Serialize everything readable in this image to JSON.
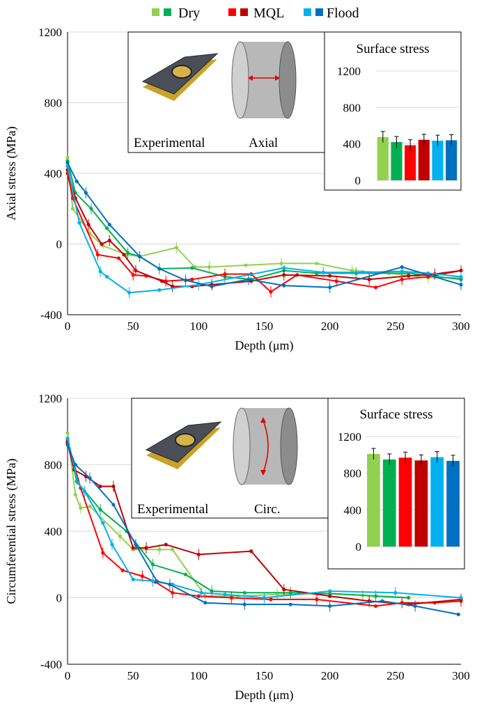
{
  "legend": [
    {
      "label": "Dry",
      "colors": [
        "#92d050",
        "#00b050"
      ]
    },
    {
      "label": "MQL",
      "colors": [
        "#ff0000",
        "#c00000"
      ]
    },
    {
      "label": "Flood",
      "colors": [
        "#00b0f0",
        "#0070c0"
      ]
    }
  ],
  "series_colors": [
    "#92d050",
    "#00b050",
    "#ff0000",
    "#c00000",
    "#00b0f0",
    "#0070c0"
  ],
  "chart_data": [
    {
      "type": "line",
      "ylabel": "Axial stress (MPa)",
      "xlabel": "Depth (μm)",
      "xlim": [
        0,
        300
      ],
      "ylim": [
        -400,
        1200
      ],
      "xticks": [
        "0",
        "50",
        "100",
        "150",
        "200",
        "250",
        "300"
      ],
      "yticks": [
        "-400",
        "0",
        "400",
        "800",
        "1200"
      ],
      "grid": "horizontal",
      "inset": {
        "text1": "Experimental",
        "text2": "Axial"
      },
      "bar_inset": {
        "title": "Surface stress",
        "yticks": [
          "0",
          "400",
          "800",
          "1200"
        ],
        "ylim": [
          0,
          1200
        ],
        "values": [
          475,
          420,
          385,
          445,
          435,
          440
        ]
      },
      "series": [
        {
          "x": [
            0,
            4,
            17,
            27,
            45,
            55,
            83,
            97,
            108,
            136,
            163,
            190,
            217,
            245,
            275,
            300
          ],
          "y": [
            490,
            200,
            60,
            -10,
            -60,
            -70,
            -20,
            -130,
            -130,
            -120,
            -110,
            -110,
            -150,
            -165,
            -190,
            -190
          ]
        },
        {
          "x": [
            0,
            6,
            18,
            30,
            46,
            55,
            70,
            95,
            120,
            140,
            165,
            190,
            220,
            260,
            300
          ],
          "y": [
            470,
            290,
            200,
            90,
            -50,
            -70,
            -140,
            -135,
            -185,
            -200,
            -150,
            -165,
            -165,
            -165,
            -200
          ]
        },
        {
          "x": [
            0,
            4,
            23,
            39,
            50,
            60,
            75,
            95,
            120,
            140,
            155,
            175,
            205,
            235,
            255,
            275,
            300
          ],
          "y": [
            400,
            260,
            -60,
            -80,
            -175,
            -180,
            -210,
            -200,
            -170,
            -170,
            -270,
            -175,
            -210,
            -245,
            -200,
            -185,
            -150
          ]
        },
        {
          "x": [
            0,
            6,
            16,
            26,
            32,
            43,
            52,
            72,
            80,
            95,
            110,
            140,
            165,
            200,
            230,
            260,
            280,
            300
          ],
          "y": [
            420,
            260,
            110,
            0,
            20,
            -60,
            -150,
            -210,
            -240,
            -240,
            -230,
            -210,
            -175,
            -180,
            -200,
            -180,
            -170,
            -150
          ]
        },
        {
          "x": [
            0,
            9,
            25,
            30,
            47,
            70,
            100,
            165,
            195,
            225,
            255,
            275,
            300
          ],
          "y": [
            440,
            120,
            -155,
            -185,
            -275,
            -260,
            -230,
            -135,
            -160,
            -160,
            -155,
            -165,
            -185
          ]
        },
        {
          "x": [
            0,
            7,
            14,
            32,
            55,
            70,
            90,
            110,
            138,
            165,
            200,
            255,
            300
          ],
          "y": [
            460,
            355,
            290,
            110,
            -70,
            -140,
            -205,
            -240,
            -200,
            -235,
            -245,
            -130,
            -230
          ]
        }
      ]
    },
    {
      "type": "line",
      "ylabel": "Circumferential stress (MPa)",
      "xlabel": "Depth (μm)",
      "xlim": [
        0,
        300
      ],
      "ylim": [
        -400,
        1200
      ],
      "xticks": [
        "0",
        "50",
        "100",
        "150",
        "200",
        "250",
        "300"
      ],
      "yticks": [
        "-400",
        "0",
        "400",
        "800",
        "1200"
      ],
      "grid": "horizontal",
      "inset": {
        "text1": "Experimental",
        "text2": "Circ."
      },
      "bar_inset": {
        "title": "Surface stress",
        "yticks": [
          "0",
          "400",
          "800",
          "1200"
        ],
        "ylim": [
          0,
          1200
        ],
        "values": [
          1010,
          950,
          970,
          940,
          975,
          935
        ]
      },
      "series": [
        {
          "x": [
            0,
            6,
            10,
            17,
            40,
            50,
            70,
            80,
            105,
            130,
            160,
            200,
            225,
            260
          ],
          "y": [
            990,
            620,
            540,
            550,
            370,
            290,
            290,
            290,
            10,
            10,
            20,
            25,
            15,
            0
          ]
        },
        {
          "x": [
            0,
            7,
            25,
            45,
            65,
            90,
            110,
            135,
            170,
            200,
            235,
            260
          ],
          "y": [
            950,
            700,
            530,
            400,
            200,
            140,
            40,
            30,
            30,
            25,
            10,
            0
          ]
        },
        {
          "x": [
            0,
            10,
            27,
            42,
            57,
            67,
            80,
            100,
            125,
            155,
            190,
            235,
            255,
            280,
            300
          ],
          "y": [
            940,
            660,
            270,
            165,
            130,
            95,
            30,
            10,
            0,
            -10,
            -10,
            -50,
            -30,
            -30,
            -20
          ]
        },
        {
          "x": [
            0,
            5,
            14,
            25,
            35,
            50,
            60,
            75,
            100,
            140,
            165,
            200,
            230,
            260,
            300
          ],
          "y": [
            930,
            770,
            730,
            670,
            670,
            300,
            300,
            320,
            260,
            280,
            50,
            10,
            -20,
            -40,
            -10
          ]
        },
        {
          "x": [
            0,
            8,
            13,
            27,
            34,
            50,
            65,
            80,
            102,
            120,
            150,
            200,
            250,
            300
          ],
          "y": [
            960,
            690,
            640,
            450,
            320,
            110,
            100,
            80,
            30,
            20,
            0,
            40,
            30,
            0
          ]
        },
        {
          "x": [
            0,
            6,
            17,
            35,
            52,
            68,
            78,
            105,
            135,
            170,
            200,
            240,
            265,
            298
          ],
          "y": [
            920,
            800,
            720,
            560,
            320,
            100,
            80,
            -30,
            -40,
            -40,
            -50,
            -20,
            -50,
            -100
          ]
        }
      ]
    }
  ]
}
